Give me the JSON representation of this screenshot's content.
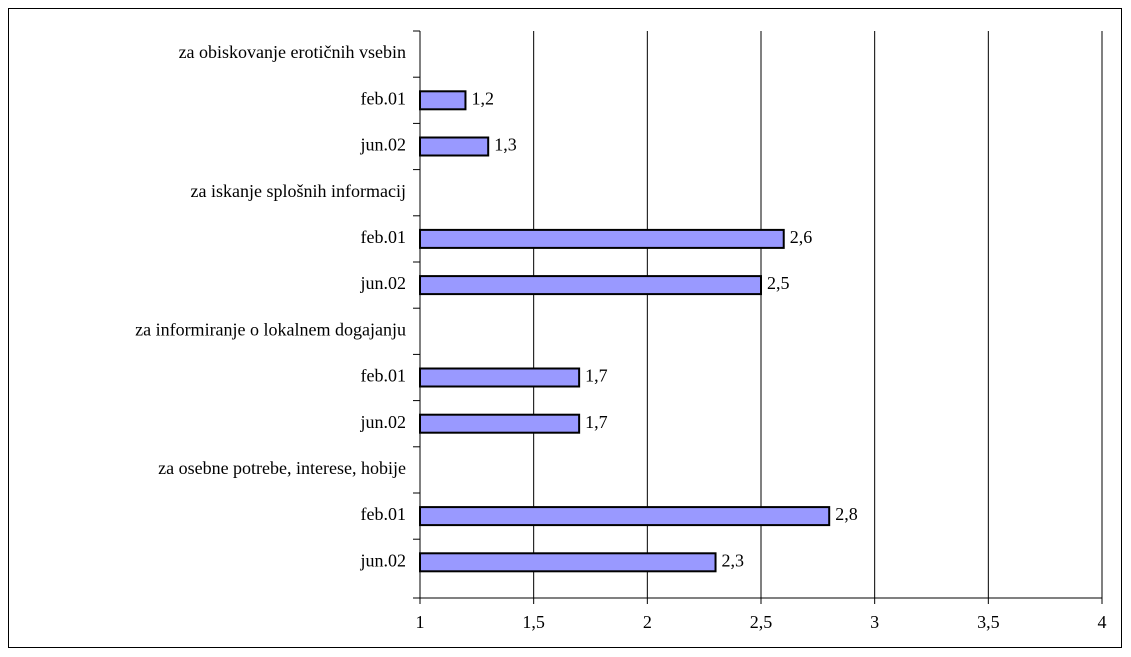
{
  "chart_data": {
    "type": "bar",
    "orientation": "horizontal",
    "categories": [
      "za obiskovanje erotičnih vsebin",
      "feb.01",
      "jun.02",
      "za iskanje splošnih informacij",
      "feb.01",
      "jun.02",
      "za informiranje o lokalnem dogajanju",
      "feb.01",
      "jun.02",
      "za osebne potrebe, interese, hobije",
      "feb.01",
      "jun.02"
    ],
    "values": [
      null,
      1.2,
      1.3,
      null,
      2.6,
      2.5,
      null,
      1.7,
      1.7,
      null,
      2.8,
      2.3
    ],
    "value_labels": [
      null,
      "1,2",
      "1,3",
      null,
      "2,6",
      "2,5",
      null,
      "1,7",
      "1,7",
      null,
      "2,8",
      "2,3"
    ],
    "color": "#9999ff",
    "xlim": [
      1,
      4
    ],
    "xticks": [
      1,
      {
        "value": 1.5,
        "label": "1,5"
      },
      2,
      {
        "value": 2.5,
        "label": "2,5"
      },
      3,
      {
        "value": 3.5,
        "label": "3,5"
      },
      4
    ],
    "grid": true
  }
}
